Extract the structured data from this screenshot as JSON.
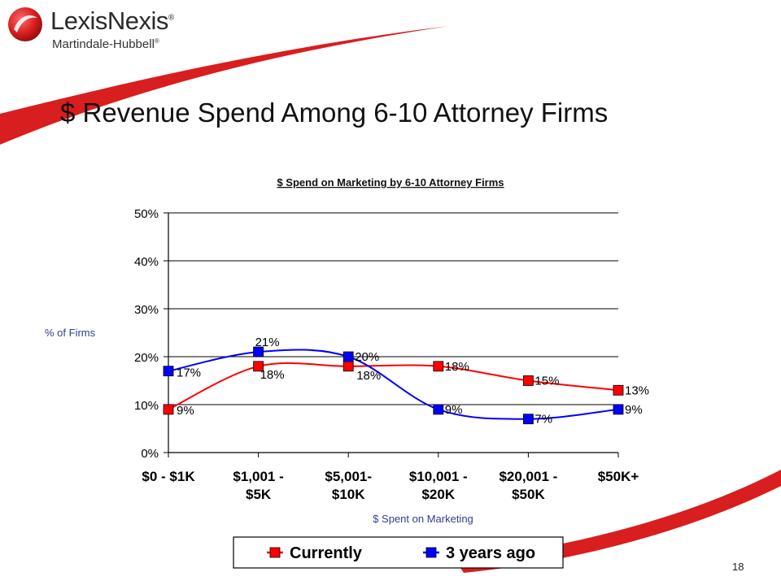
{
  "brand": {
    "name": "LexisNexis",
    "name_mark": "®",
    "subtitle": "Martindale-Hubbell",
    "subtitle_mark": "®",
    "accent_color": "#d81e1e"
  },
  "slide": {
    "title": "$ Revenue Spend Among 6-10 Attorney Firms",
    "page_number": "18"
  },
  "chart_data": {
    "type": "line",
    "title": "$ Spend on Marketing by 6-10 Attorney Firms",
    "xlabel": "$ Spent on Marketing",
    "ylabel": "% of Firms",
    "categories": [
      [
        "$0 - $1K"
      ],
      [
        "$1,001 -",
        "$5K"
      ],
      [
        "$5,001-",
        "$10K"
      ],
      [
        "$10,001 -",
        "$20K"
      ],
      [
        "$20,001 -",
        "$50K"
      ],
      [
        "$50K+"
      ]
    ],
    "y_ticks": [
      "0%",
      "10%",
      "20%",
      "30%",
      "40%",
      "50%"
    ],
    "ylim": [
      0,
      50
    ],
    "grid": true,
    "legend_position": "bottom",
    "series": [
      {
        "name": "Currently",
        "color": "#ff0000",
        "values": [
          9,
          18,
          18,
          18,
          15,
          13
        ],
        "labels": [
          "9%",
          "18%",
          "18%",
          "18%",
          "15%",
          "13%"
        ]
      },
      {
        "name": "3 years ago",
        "color": "#0000ff",
        "values": [
          17,
          21,
          20,
          9,
          7,
          9
        ],
        "labels": [
          "17%",
          "21%",
          "20%",
          "9%",
          "7%",
          "9%"
        ]
      }
    ]
  }
}
